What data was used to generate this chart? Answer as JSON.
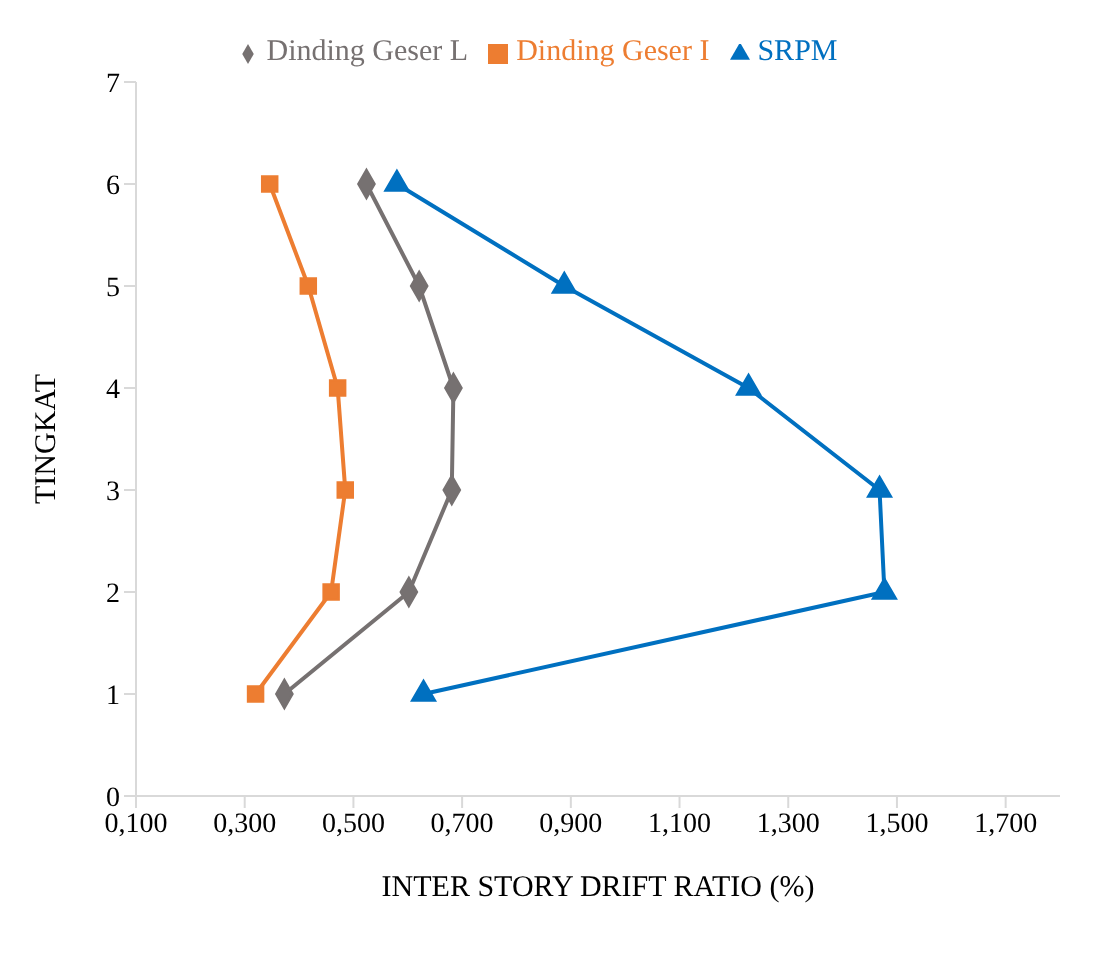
{
  "chart_data": {
    "type": "line",
    "xlabel": "INTER STORY DRIFT RATIO (%)",
    "ylabel": "TINGKAT",
    "xlim": [
      0.1,
      1.8
    ],
    "xticks": [
      {
        "value": 0.1,
        "label": "0,100"
      },
      {
        "value": 0.3,
        "label": "0,300"
      },
      {
        "value": 0.5,
        "label": "0,500"
      },
      {
        "value": 0.7,
        "label": "0,700"
      },
      {
        "value": 0.9,
        "label": "0,900"
      },
      {
        "value": 1.1,
        "label": "1,100"
      },
      {
        "value": 1.3,
        "label": "1,300"
      },
      {
        "value": 1.5,
        "label": "1,500"
      },
      {
        "value": 1.7,
        "label": "1,700"
      }
    ],
    "ylim": [
      0,
      7
    ],
    "yticks": [
      0,
      1,
      2,
      3,
      4,
      5,
      6,
      7
    ],
    "grid": false,
    "legend": "top",
    "series": [
      {
        "name": "Dinding Geser L",
        "color": "#767171",
        "marker": "diamond",
        "x": [
          0.373,
          0.602,
          0.681,
          0.684,
          0.621,
          0.524
        ],
        "values": [
          1,
          2,
          3,
          4,
          5,
          6
        ]
      },
      {
        "name": "Dinding Geser I",
        "color": "#ed7d31",
        "marker": "square",
        "x": [
          0.32,
          0.459,
          0.485,
          0.471,
          0.417,
          0.346
        ],
        "values": [
          1,
          2,
          3,
          4,
          5,
          6
        ]
      },
      {
        "name": "SRPM",
        "color": "#0070c0",
        "marker": "triangle",
        "x": [
          0.629,
          1.477,
          1.468,
          1.227,
          0.888,
          0.58
        ],
        "values": [
          1,
          2,
          3,
          4,
          5,
          6
        ]
      }
    ]
  }
}
